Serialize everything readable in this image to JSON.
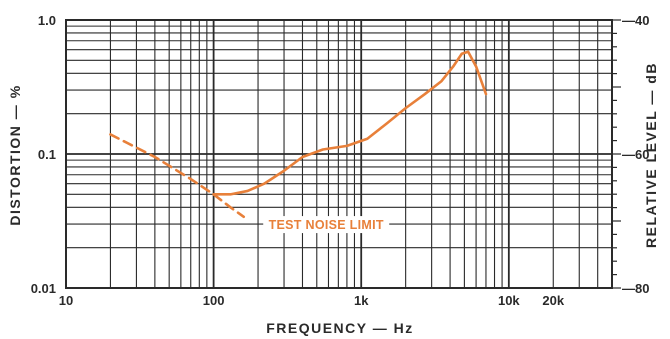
{
  "chart_data": {
    "type": "line",
    "title": "",
    "xlabel": "FREQUENCY — Hz",
    "ylabel": "DISTORTION — %",
    "y2label": "RELATIVE LEVEL — dB",
    "x_scale": "log",
    "y_scale": "log",
    "xlim": [
      10,
      50000
    ],
    "ylim": [
      0.01,
      1.0
    ],
    "y2lim": [
      -80,
      -40
    ],
    "grid": true,
    "legend": "none",
    "x_ticks": [
      {
        "value": 10,
        "label": "10"
      },
      {
        "value": 100,
        "label": "100"
      },
      {
        "value": 1000,
        "label": "1k"
      },
      {
        "value": 10000,
        "label": "10k"
      },
      {
        "value": 20000,
        "label": "20k"
      }
    ],
    "y_ticks": [
      {
        "value": 0.01,
        "label": "0.01"
      },
      {
        "value": 0.1,
        "label": "0.1"
      },
      {
        "value": 1.0,
        "label": "1.0"
      }
    ],
    "y2_ticks": [
      {
        "value": -80,
        "label": "—80"
      },
      {
        "value": -60,
        "label": "—60"
      },
      {
        "value": -40,
        "label": "—40"
      }
    ],
    "series": [
      {
        "name": "",
        "style": "solid",
        "color": "#e8803a",
        "x": [
          100,
          130,
          170,
          220,
          300,
          400,
          550,
          800,
          1100,
          1500,
          2000,
          2700,
          3500,
          4200,
          4800,
          5300,
          6000,
          7000
        ],
        "y": [
          0.05,
          0.05,
          0.053,
          0.06,
          0.075,
          0.095,
          0.108,
          0.115,
          0.13,
          0.17,
          0.22,
          0.28,
          0.35,
          0.45,
          0.56,
          0.58,
          0.45,
          0.28
        ]
      },
      {
        "name": "",
        "style": "dashed",
        "color": "#e8803a",
        "x": [
          20,
          40,
          70,
          100,
          130,
          160
        ],
        "y": [
          0.14,
          0.095,
          0.065,
          0.05,
          0.04,
          0.034
        ]
      }
    ],
    "annotations": [
      {
        "text": "TEST NOISE LIMIT",
        "x": 1000,
        "y": 0.028
      }
    ]
  }
}
